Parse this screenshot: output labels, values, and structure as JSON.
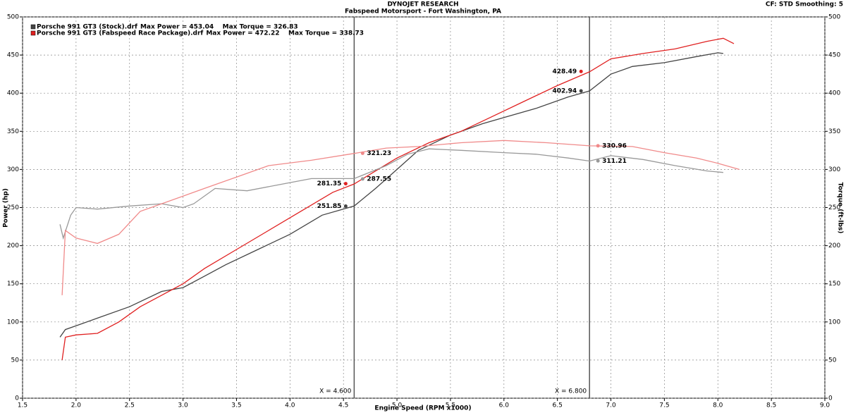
{
  "chart_data": {
    "type": "line",
    "title": "DYNOJET RESEARCH",
    "subtitle": "Fabspeed Motorsport - Fort Washington, PA",
    "settings_text": "CF: STD  Smoothing: 5",
    "x_label": "Engine Speed (RPM x1000)",
    "y_label": "Power (hp)",
    "y2_label": "Torque (ft-lbs)",
    "xlim": [
      1.5,
      9.0
    ],
    "xticks": [
      1.5,
      {
        "value": 2,
        "label": "2.0"
      },
      2.5,
      {
        "value": 3,
        "label": "3.0"
      },
      3.5,
      {
        "value": 4,
        "label": "4.0"
      },
      4.5,
      {
        "value": 5,
        "label": "5.0"
      },
      5.5,
      {
        "value": 6,
        "label": "6.0"
      },
      6.5,
      {
        "value": 7,
        "label": "7.0"
      },
      7.5,
      {
        "value": 8,
        "label": "8.0"
      },
      8.5,
      {
        "value": 9,
        "label": "9.0"
      }
    ],
    "ylim": [
      0,
      500
    ],
    "yticks": [
      0,
      50,
      100,
      150,
      200,
      250,
      300,
      350,
      400,
      450,
      500
    ],
    "y2lim": [
      0,
      500
    ],
    "y2ticks": [
      0,
      50,
      100,
      150,
      200,
      250,
      300,
      350,
      400,
      450,
      500
    ],
    "grid": true,
    "cursors": [
      {
        "value": 4.6,
        "label": "X = 4.600"
      },
      {
        "value": 6.8,
        "label": "X = 6.800"
      }
    ],
    "legend": [
      {
        "name": "Porsche 991 GT3 (Stock).drf",
        "summary": "Max Power = 453.04    Max Torque = 326.83",
        "color": "#444444"
      },
      {
        "name": "Porsche 991 GT3 (Fabspeed Race Package).drf",
        "summary": "Max Power = 472.22    Max Torque = 338.73",
        "color": "#e02020"
      }
    ],
    "series": [
      {
        "name": "Stock Power",
        "color": "#444444",
        "axis": "y",
        "x": [
          1.85,
          1.9,
          2.0,
          2.2,
          2.5,
          2.8,
          3.0,
          3.2,
          3.4,
          3.7,
          4.0,
          4.3,
          4.6,
          4.8,
          5.0,
          5.2,
          5.5,
          5.8,
          6.0,
          6.3,
          6.6,
          6.8,
          7.0,
          7.2,
          7.5,
          7.8,
          8.0,
          8.05
        ],
        "values": [
          80,
          90,
          95,
          105,
          120,
          140,
          145,
          160,
          175,
          195,
          215,
          240,
          252,
          275,
          300,
          325,
          345,
          360,
          368,
          380,
          395,
          403,
          425,
          435,
          440,
          448,
          453,
          452
        ],
        "readouts": [
          251.85,
          402.94
        ]
      },
      {
        "name": "Race Power",
        "color": "#e02020",
        "axis": "y",
        "x": [
          1.87,
          1.9,
          2.0,
          2.2,
          2.4,
          2.6,
          2.8,
          3.0,
          3.2,
          3.5,
          3.8,
          4.1,
          4.4,
          4.6,
          4.8,
          5.0,
          5.3,
          5.6,
          5.9,
          6.2,
          6.5,
          6.8,
          7.0,
          7.3,
          7.6,
          7.9,
          8.05,
          8.15
        ],
        "values": [
          50,
          80,
          83,
          85,
          100,
          120,
          135,
          150,
          170,
          195,
          220,
          245,
          270,
          281,
          298,
          315,
          335,
          350,
          370,
          390,
          410,
          428,
          445,
          452,
          458,
          468,
          472,
          465
        ],
        "readouts": [
          281.35,
          428.49
        ]
      },
      {
        "name": "Stock Torque",
        "color": "#999999",
        "axis": "y2",
        "x": [
          1.85,
          1.88,
          1.95,
          2.0,
          2.2,
          2.5,
          2.8,
          3.0,
          3.1,
          3.3,
          3.6,
          3.9,
          4.2,
          4.6,
          4.9,
          5.1,
          5.3,
          5.6,
          6.0,
          6.3,
          6.6,
          6.8,
          7.0,
          7.3,
          7.6,
          7.9,
          8.05
        ],
        "values": [
          228,
          210,
          240,
          250,
          248,
          252,
          255,
          250,
          255,
          275,
          272,
          280,
          288,
          288,
          305,
          320,
          327,
          325,
          322,
          320,
          315,
          311,
          318,
          313,
          305,
          298,
          296
        ],
        "readouts": [
          287.55,
          311.21
        ]
      },
      {
        "name": "Race Torque",
        "color": "#f08a8a",
        "axis": "y2",
        "x": [
          1.87,
          1.9,
          2.0,
          2.2,
          2.4,
          2.6,
          2.8,
          3.2,
          3.5,
          3.8,
          4.2,
          4.6,
          4.9,
          5.2,
          5.6,
          6.0,
          6.4,
          6.8,
          7.2,
          7.5,
          7.8,
          8.0,
          8.2
        ],
        "values": [
          135,
          220,
          210,
          203,
          215,
          245,
          255,
          275,
          290,
          305,
          312,
          321,
          328,
          330,
          335,
          338,
          335,
          331,
          330,
          322,
          315,
          308,
          300
        ],
        "readouts": [
          321.23,
          330.96
        ]
      }
    ]
  }
}
